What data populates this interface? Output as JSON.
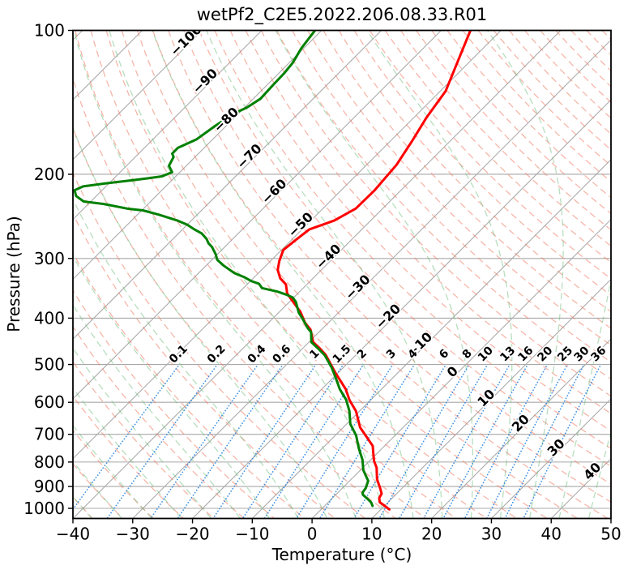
{
  "chart_data": {
    "type": "line",
    "subtype": "skewt-log-p",
    "title": "wetPf2_C2E5.2022.206.08.33.R01",
    "xlabel": "Temperature (°C)",
    "ylabel": "Pressure (hPa)",
    "xlim": [
      -40,
      50
    ],
    "x_ticks": [
      -40,
      -30,
      -20,
      -10,
      0,
      10,
      20,
      30,
      40,
      50
    ],
    "ylim": [
      1050,
      100
    ],
    "y_scale": "log",
    "y_ticks": [
      100,
      200,
      300,
      400,
      500,
      600,
      700,
      800,
      900,
      1000
    ],
    "skew_degrees": 45,
    "grid": true,
    "colors": {
      "temperature_line": "#ff0000",
      "dewpoint_line": "#008000",
      "pressure_grid": "#a8a8a8",
      "isotherm": "#ababab",
      "dry_adiabat": "#ee7a62",
      "moist_adiabat": "#6fbe7d",
      "mixing_ratio": "#2080e0",
      "isotherm_label_negative": "#2878b8",
      "isotherm_label_zero": "#808080",
      "isotherm_label_positive": "#d62728",
      "mixing_label": "#1f7ecb"
    },
    "isotherms": {
      "start": -130,
      "end": 50,
      "step": 10
    },
    "isotherm_labels": [
      -100,
      -90,
      -80,
      -70,
      -60,
      -50,
      -40,
      -30,
      -20,
      -10,
      0,
      10,
      20,
      30,
      40
    ],
    "isotherm_label_reference_theta_k": 328.15,
    "dry_adiabats": {
      "theta_start_c": -40,
      "theta_end_c": 200,
      "step_c": 5
    },
    "moist_adiabats": {
      "tw_start_c": -50,
      "tw_end_c": 45,
      "step_c": 5
    },
    "mixing_ratio_lines": {
      "values_g_kg": [
        0.1,
        0.2,
        0.4,
        0.6,
        1,
        1.5,
        2,
        3,
        4,
        6,
        8,
        10,
        13,
        16,
        20,
        25,
        30,
        36
      ],
      "top_pressure": 505,
      "label_pressure": 485
    },
    "series": [
      {
        "name": "temperature",
        "color": "#ff0000",
        "points_p_t": [
          [
            100,
            -55.1
          ],
          [
            113,
            -52.6
          ],
          [
            134,
            -49.1
          ],
          [
            152,
            -47.9
          ],
          [
            170,
            -46.4
          ],
          [
            191,
            -45.0
          ],
          [
            216,
            -44.4
          ],
          [
            236,
            -44.5
          ],
          [
            250,
            -46.1
          ],
          [
            261,
            -48.8
          ],
          [
            275,
            -49.3
          ],
          [
            288,
            -49.7
          ],
          [
            304,
            -48.5
          ],
          [
            317,
            -47.3
          ],
          [
            330,
            -45.5
          ],
          [
            340,
            -43.5
          ],
          [
            355,
            -41.8
          ],
          [
            366,
            -40.0
          ],
          [
            388,
            -36.5
          ],
          [
            409,
            -33.9
          ],
          [
            423,
            -31.8
          ],
          [
            449,
            -29.3
          ],
          [
            463,
            -27.1
          ],
          [
            478,
            -25.0
          ],
          [
            521,
            -20.4
          ],
          [
            563,
            -16.0
          ],
          [
            594,
            -13.5
          ],
          [
            626,
            -10.6
          ],
          [
            677,
            -7.2
          ],
          [
            740,
            -2.0
          ],
          [
            795,
            0.7
          ],
          [
            822,
            2.3
          ],
          [
            869,
            4.3
          ],
          [
            907,
            6.3
          ],
          [
            932,
            7.5
          ],
          [
            951,
            7.8
          ],
          [
            971,
            8.6
          ],
          [
            984,
            9.7
          ],
          [
            1005,
            11.4
          ]
        ]
      },
      {
        "name": "dewpoint",
        "color": "#008000",
        "points_p_t": [
          [
            100,
            -81.1
          ],
          [
            109,
            -80.4
          ],
          [
            117,
            -79.4
          ],
          [
            123,
            -79.1
          ],
          [
            130,
            -79.0
          ],
          [
            139,
            -78.8
          ],
          [
            145,
            -79.6
          ],
          [
            149,
            -80.7
          ],
          [
            158,
            -81.8
          ],
          [
            169,
            -82.7
          ],
          [
            176,
            -84.4
          ],
          [
            181,
            -84.4
          ],
          [
            184,
            -83.6
          ],
          [
            192,
            -82.9
          ],
          [
            198,
            -81.3
          ],
          [
            202,
            -82.3
          ],
          [
            204,
            -84.4
          ],
          [
            206,
            -86.8
          ],
          [
            209,
            -90.6
          ],
          [
            212,
            -93.8
          ],
          [
            216,
            -94.6
          ],
          [
            222,
            -93.4
          ],
          [
            228,
            -91.2
          ],
          [
            231,
            -87.2
          ],
          [
            236,
            -82.7
          ],
          [
            238,
            -79.8
          ],
          [
            243,
            -76.4
          ],
          [
            250,
            -72.3
          ],
          [
            255,
            -70.0
          ],
          [
            260,
            -68.3
          ],
          [
            266,
            -66.1
          ],
          [
            273,
            -64.4
          ],
          [
            279,
            -63.3
          ],
          [
            284,
            -62.1
          ],
          [
            294,
            -60.3
          ],
          [
            302,
            -59.1
          ],
          [
            310,
            -57.2
          ],
          [
            316,
            -55.6
          ],
          [
            322,
            -54.0
          ],
          [
            328,
            -51.8
          ],
          [
            335,
            -49.7
          ],
          [
            339,
            -48.1
          ],
          [
            346,
            -46.9
          ],
          [
            352,
            -43.7
          ],
          [
            357,
            -41.8
          ],
          [
            362,
            -40.2
          ],
          [
            370,
            -38.9
          ],
          [
            389,
            -36.7
          ],
          [
            401,
            -35.0
          ],
          [
            420,
            -32.5
          ],
          [
            428,
            -31.3
          ],
          [
            449,
            -29.6
          ],
          [
            463,
            -27.4
          ],
          [
            478,
            -25.2
          ],
          [
            507,
            -22.0
          ],
          [
            535,
            -19.4
          ],
          [
            563,
            -17.0
          ],
          [
            592,
            -14.2
          ],
          [
            626,
            -11.7
          ],
          [
            666,
            -9.4
          ],
          [
            704,
            -6.5
          ],
          [
            749,
            -3.9
          ],
          [
            791,
            -1.4
          ],
          [
            832,
            0.5
          ],
          [
            876,
            3.1
          ],
          [
            907,
            3.9
          ],
          [
            926,
            4.1
          ],
          [
            936,
            4.5
          ],
          [
            954,
            5.9
          ],
          [
            972,
            7.2
          ],
          [
            988,
            8.0
          ]
        ]
      }
    ]
  }
}
